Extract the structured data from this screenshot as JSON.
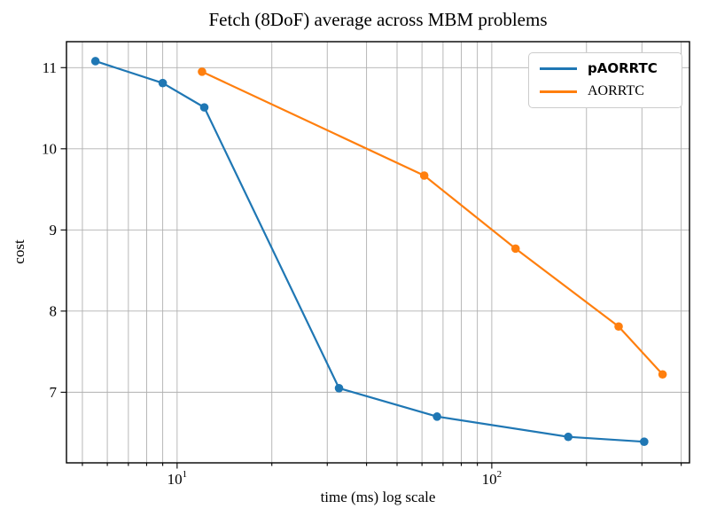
{
  "chart_data": {
    "type": "line",
    "title": "Fetch (8DoF) average across MBM problems",
    "xlabel": "time (ms) log scale",
    "ylabel": "cost",
    "xscale": "log",
    "xlim": [
      4.45,
      425
    ],
    "ylim": [
      6.13,
      11.32
    ],
    "yticks": [
      7,
      8,
      9,
      10,
      11
    ],
    "x_major_ticks": [
      {
        "value": 10,
        "base": "10",
        "exp": "1"
      },
      {
        "value": 100,
        "base": "10",
        "exp": "2"
      }
    ],
    "grid": true,
    "grid_color": "#b0b0b0",
    "spine_color": "#000000",
    "legend_position": "upper right",
    "series": [
      {
        "name": "pAORRTC",
        "color": "#1f77b4",
        "label_bold": true,
        "points": [
          [
            5.5,
            11.08
          ],
          [
            9.0,
            10.81
          ],
          [
            12.2,
            10.51
          ],
          [
            32.7,
            7.05
          ],
          [
            67,
            6.7
          ],
          [
            175,
            6.45
          ],
          [
            305,
            6.39
          ]
        ]
      },
      {
        "name": "AORRTC",
        "color": "#ff7f0e",
        "label_bold": false,
        "points": [
          [
            12.0,
            10.95
          ],
          [
            61,
            9.67
          ],
          [
            119,
            8.77
          ],
          [
            253,
            7.81
          ],
          [
            349,
            7.22
          ]
        ]
      }
    ]
  }
}
